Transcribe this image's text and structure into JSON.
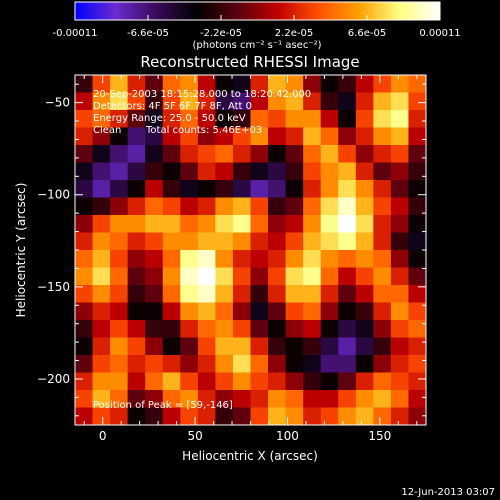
{
  "colorbar": {
    "tick_labels": [
      "-0.00011",
      "-6.6e-05",
      "-2.2e-05",
      "2.2e-05",
      "6.6e-05",
      "0.00011"
    ],
    "tick_values": [
      -0.00011,
      -6.6e-05,
      -2.2e-05,
      2.2e-05,
      6.6e-05,
      0.00011
    ],
    "range": [
      -0.00011,
      0.00011
    ],
    "unit_label": "(photons cm⁻² s⁻¹ asec⁻²)",
    "colors": [
      "#0000ff",
      "#6a2cd0",
      "#3a0a58",
      "#000000",
      "#5a0010",
      "#c00000",
      "#ff5000",
      "#ffa000",
      "#ffff80",
      "#ffffff"
    ]
  },
  "info": {
    "line1": "20-Sep-2003 18:15:28.000 to 18:20:42.000",
    "line2": "Detectors: 4F 5F 6F 7F 8F, Att 0",
    "line3": "Energy Range: 25.0 - 50.0 keV",
    "line4_method": "Clean",
    "line4_counts": "Total counts: 5.46E+03",
    "peak": "Position of Peak = [59,-146]"
  },
  "footer": {
    "date": "12-Jun-2013 03:07"
  },
  "chart_data": {
    "type": "heatmap",
    "title": "Reconstructed RHESSI Image",
    "xlabel": "Heliocentric X (arcsec)",
    "ylabel": "Heliocentric Y (arcsec)",
    "xlim": [
      -15,
      175
    ],
    "ylim": [
      -225,
      -35
    ],
    "x_ticks": [
      0,
      50,
      100,
      150
    ],
    "x_tick_labels": [
      "0",
      "50",
      "100",
      "150"
    ],
    "y_ticks": [
      -50,
      -100,
      -150,
      -200
    ],
    "y_tick_labels": [
      "−50",
      "−100",
      "−150",
      "−200"
    ],
    "peak_position": [
      59,
      -146
    ],
    "grid_x": [
      -15,
      -5,
      5,
      15,
      25,
      35,
      45,
      55,
      65,
      75,
      85,
      95,
      105,
      115,
      125,
      135,
      145,
      155,
      165,
      175
    ],
    "grid_y": [
      -35,
      -45,
      -55,
      -65,
      -75,
      -85,
      -95,
      -105,
      -115,
      -125,
      -135,
      -145,
      -155,
      -165,
      -175,
      -185,
      -195,
      -205,
      -215,
      -225
    ],
    "values": [
      [
        -0.2,
        0.3,
        0.6,
        0.2,
        -0.1,
        0.4,
        0.5,
        0.1,
        -0.3,
        -0.4,
        0.2,
        0.6,
        0.5,
        0.0,
        -0.3,
        -0.2,
        0.1,
        0.3,
        0.5,
        0.4
      ],
      [
        0.1,
        0.5,
        0.7,
        0.3,
        -0.2,
        0.3,
        0.6,
        0.2,
        -0.5,
        -0.6,
        0.1,
        0.5,
        0.6,
        0.2,
        -0.2,
        -0.4,
        0.2,
        0.6,
        0.7,
        0.3
      ],
      [
        0.3,
        0.4,
        0.2,
        -0.1,
        -0.4,
        0.2,
        0.4,
        0.1,
        -0.3,
        -0.2,
        0.4,
        0.3,
        0.5,
        0.5,
        0.1,
        -0.3,
        0.3,
        0.7,
        0.8,
        0.2
      ],
      [
        0.2,
        0.0,
        -0.3,
        -0.6,
        -0.5,
        0.1,
        0.3,
        0.0,
        0.1,
        0.3,
        0.5,
        0.1,
        0.2,
        0.6,
        0.4,
        0.0,
        0.2,
        0.5,
        0.6,
        0.1
      ],
      [
        -0.1,
        -0.4,
        -0.6,
        -0.7,
        -0.4,
        -0.1,
        0.2,
        0.3,
        0.4,
        0.2,
        0.0,
        -0.3,
        -0.1,
        0.4,
        0.6,
        0.3,
        0.0,
        0.2,
        0.3,
        -0.1
      ],
      [
        -0.4,
        -0.6,
        -0.7,
        -0.5,
        -0.2,
        -0.3,
        -0.1,
        0.2,
        0.1,
        -0.2,
        -0.4,
        -0.5,
        -0.2,
        0.3,
        0.5,
        0.6,
        0.2,
        -0.1,
        0.0,
        -0.2
      ],
      [
        -0.5,
        -0.7,
        -0.5,
        -0.3,
        0.1,
        -0.2,
        -0.4,
        -0.3,
        -0.2,
        -0.5,
        -0.7,
        -0.6,
        -0.3,
        0.2,
        0.5,
        0.7,
        0.5,
        0.2,
        -0.1,
        -0.3
      ],
      [
        -0.3,
        -0.2,
        0.0,
        0.2,
        0.4,
        0.3,
        0.1,
        0.2,
        0.5,
        0.6,
        0.3,
        -0.2,
        -0.1,
        0.4,
        0.7,
        0.9,
        0.6,
        0.3,
        0.1,
        -0.2
      ],
      [
        0.0,
        0.3,
        0.5,
        0.5,
        0.6,
        0.6,
        0.4,
        0.5,
        0.7,
        0.8,
        0.4,
        0.0,
        0.1,
        0.5,
        0.8,
        1.0,
        0.7,
        0.2,
        0.0,
        -0.3
      ],
      [
        0.2,
        0.5,
        0.4,
        0.2,
        0.3,
        0.5,
        0.5,
        0.6,
        0.6,
        0.5,
        0.2,
        0.1,
        0.3,
        0.6,
        0.7,
        0.8,
        0.6,
        0.2,
        -0.2,
        -0.4
      ],
      [
        0.4,
        0.6,
        0.3,
        0.0,
        0.1,
        0.4,
        0.8,
        0.9,
        0.5,
        0.2,
        0.1,
        0.2,
        0.5,
        0.7,
        0.5,
        0.4,
        0.5,
        0.4,
        0.0,
        -0.3
      ],
      [
        0.5,
        0.7,
        0.4,
        -0.1,
        0.0,
        0.5,
        0.9,
        1.0,
        0.7,
        0.3,
        0.0,
        0.3,
        0.7,
        0.8,
        0.4,
        0.1,
        0.3,
        0.5,
        0.2,
        -0.1
      ],
      [
        0.3,
        0.5,
        0.3,
        -0.2,
        -0.1,
        0.4,
        0.8,
        0.9,
        0.6,
        0.2,
        -0.2,
        0.2,
        0.6,
        0.6,
        0.2,
        -0.1,
        0.1,
        0.4,
        0.4,
        0.1
      ],
      [
        0.0,
        0.2,
        0.1,
        -0.3,
        -0.3,
        0.1,
        0.5,
        0.6,
        0.4,
        0.0,
        -0.4,
        -0.1,
        0.3,
        0.4,
        0.0,
        -0.3,
        -0.2,
        0.2,
        0.5,
        0.3
      ],
      [
        -0.2,
        0.1,
        0.3,
        0.1,
        -0.2,
        -0.2,
        0.2,
        0.4,
        0.5,
        0.3,
        -0.1,
        -0.3,
        0.0,
        0.1,
        -0.3,
        -0.5,
        -0.4,
        0.0,
        0.3,
        0.4
      ],
      [
        -0.3,
        0.2,
        0.5,
        0.3,
        0.0,
        -0.3,
        -0.1,
        0.3,
        0.6,
        0.6,
        0.2,
        -0.2,
        -0.3,
        -0.2,
        -0.5,
        -0.7,
        -0.5,
        -0.2,
        0.1,
        0.2
      ],
      [
        -0.1,
        0.3,
        0.4,
        0.2,
        0.3,
        0.2,
        0.0,
        0.2,
        0.5,
        0.7,
        0.4,
        0.0,
        -0.3,
        -0.4,
        -0.6,
        -0.6,
        -0.3,
        0.0,
        0.2,
        0.3
      ],
      [
        0.2,
        0.5,
        0.5,
        0.1,
        0.4,
        0.6,
        0.3,
        0.1,
        0.3,
        0.5,
        0.3,
        0.2,
        0.0,
        -0.2,
        -0.3,
        -0.1,
        0.2,
        0.4,
        0.3,
        0.2
      ],
      [
        0.3,
        0.6,
        0.4,
        -0.1,
        0.0,
        0.4,
        0.5,
        0.2,
        0.0,
        0.1,
        0.2,
        0.5,
        0.4,
        0.1,
        0.1,
        0.3,
        0.5,
        0.6,
        0.4,
        0.1
      ],
      [
        0.1,
        0.3,
        0.2,
        -0.3,
        -0.2,
        0.1,
        0.3,
        0.2,
        -0.2,
        -0.1,
        0.3,
        0.6,
        0.5,
        0.2,
        0.3,
        0.5,
        0.6,
        0.4,
        0.2,
        0.0
      ]
    ]
  }
}
